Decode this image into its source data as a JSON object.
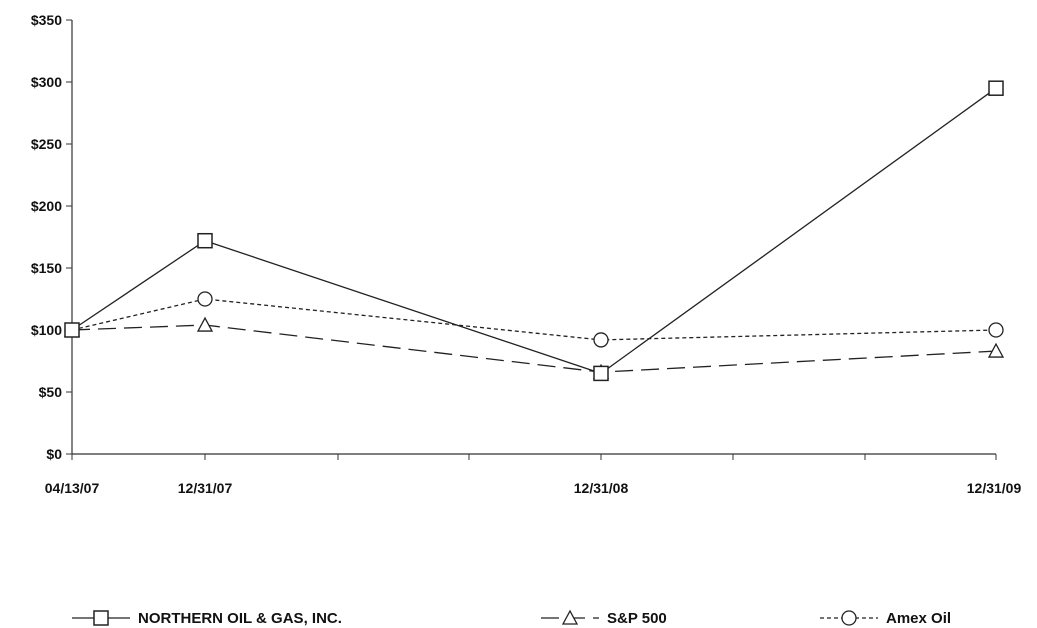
{
  "chart_data": {
    "type": "line",
    "x": [
      "04/13/07",
      "12/31/07",
      "12/31/08",
      "12/31/09"
    ],
    "y_ticks": [
      "$0",
      "$50",
      "$100",
      "$150",
      "$200",
      "$250",
      "$300",
      "$350"
    ],
    "ylim": [
      0,
      350
    ],
    "grid": false,
    "legend_position": "bottom",
    "series": [
      {
        "name": "NORTHERN OIL & GAS, INC.",
        "values": [
          100,
          172,
          65,
          295
        ],
        "marker": "square",
        "dash": "solid",
        "color": "#222222"
      },
      {
        "name": "S&P 500",
        "values": [
          100,
          104,
          66,
          83
        ],
        "marker": "triangle",
        "dash": "long-dash",
        "color": "#222222"
      },
      {
        "name": "Amex Oil",
        "values": [
          100,
          125,
          92,
          100
        ],
        "marker": "circle",
        "dash": "dotted",
        "color": "#222222"
      }
    ]
  }
}
